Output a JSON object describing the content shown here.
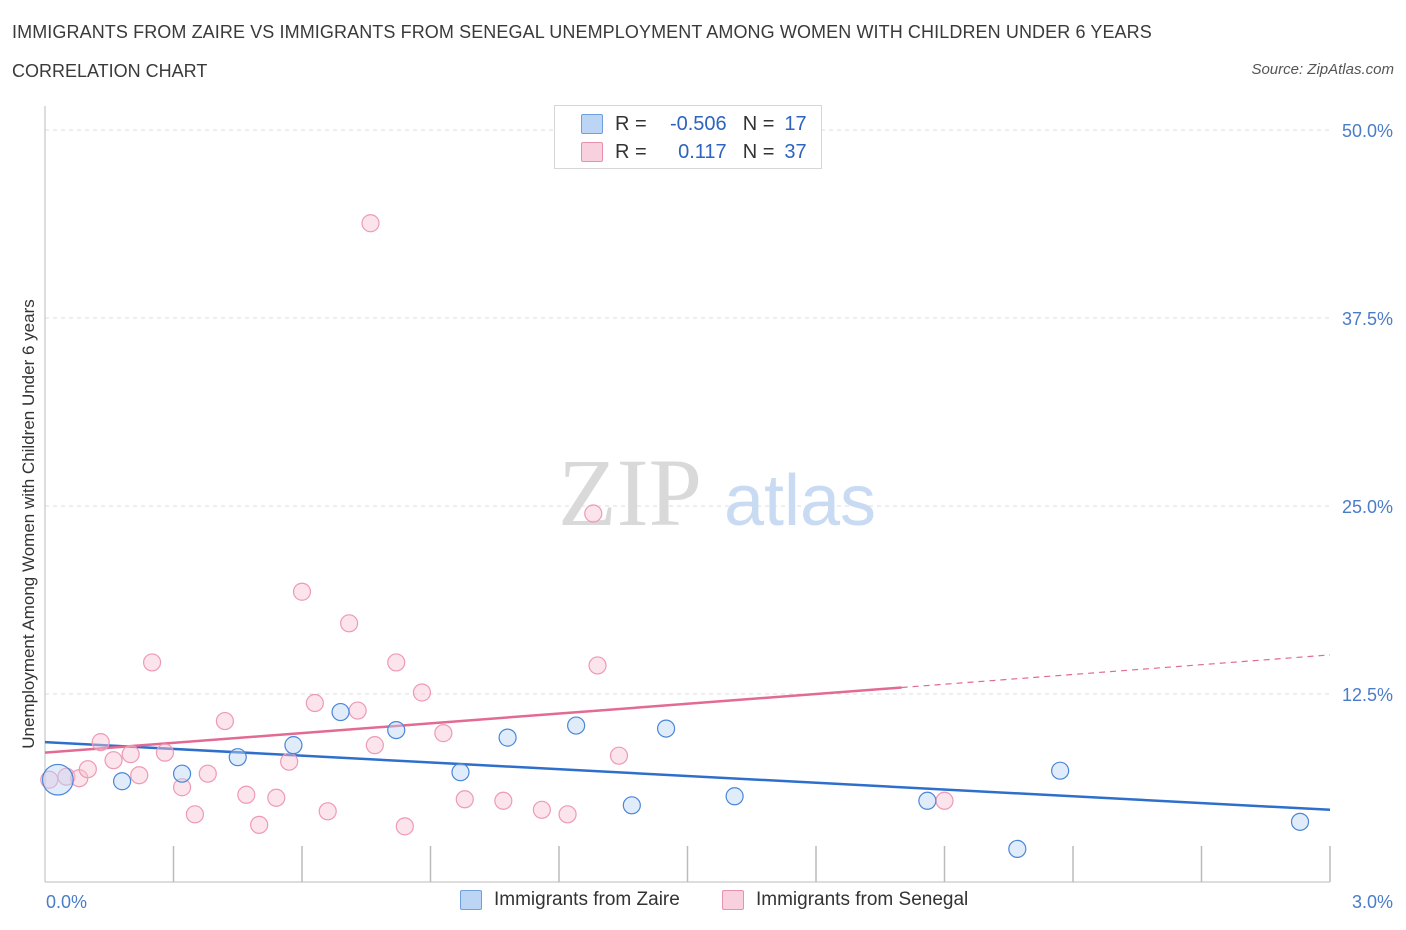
{
  "header": {
    "title": "IMMIGRANTS FROM ZAIRE VS IMMIGRANTS FROM SENEGAL UNEMPLOYMENT AMONG WOMEN WITH CHILDREN UNDER 6 YEARS",
    "subtitle": "CORRELATION CHART",
    "source": "Source: ZipAtlas.com"
  },
  "watermark": {
    "zip": "ZIP",
    "atlas": "atlas"
  },
  "legend": {
    "rows": [
      {
        "r_label": "R =",
        "r_value": "-0.506",
        "n_label": "N =",
        "n_value": "17",
        "color": "#a9c8f0",
        "border": "#6f9fdc"
      },
      {
        "r_label": "R =",
        "r_value": "0.117",
        "n_label": "N =",
        "n_value": "37",
        "color": "#f7c4d3",
        "border": "#e891ad"
      }
    ]
  },
  "bottom_legend": {
    "zaire": "Immigrants from Zaire",
    "senegal": "Immigrants from Senegal"
  },
  "chart_data": {
    "type": "scatter",
    "title": "IMMIGRANTS FROM ZAIRE VS IMMIGRANTS FROM SENEGAL UNEMPLOYMENT AMONG WOMEN WITH CHILDREN UNDER 6 YEARS",
    "xlabel": "",
    "ylabel": "Unemployment Among Women with Children Under 6 years",
    "xlim": [
      0,
      3.0
    ],
    "ylim": [
      0,
      50
    ],
    "x_tick_labels": [
      {
        "value": 0,
        "label": "0.0%"
      },
      {
        "value": 3.0,
        "label": "3.0%"
      }
    ],
    "y_ticks": [
      {
        "value": 12.5,
        "label": "12.5%"
      },
      {
        "value": 25,
        "label": "25.0%"
      },
      {
        "value": 37.5,
        "label": "37.5%"
      },
      {
        "value": 50,
        "label": "50.0%"
      }
    ],
    "grid": true,
    "colors": {
      "zaire": "#4a86d8",
      "zaire_line": "#2e6fcc",
      "senegal": "#ee9ab5",
      "senegal_line": "#e26a93",
      "tick": "#4a7cc7"
    },
    "series": [
      {
        "name": "Immigrants from Zaire",
        "points": [
          [
            0.03,
            6.8,
            1.8
          ],
          [
            0.18,
            6.7,
            1
          ],
          [
            0.32,
            7.2,
            1
          ],
          [
            0.45,
            8.3,
            1
          ],
          [
            0.58,
            9.1,
            1
          ],
          [
            0.69,
            11.3,
            1
          ],
          [
            0.82,
            10.1,
            1
          ],
          [
            0.97,
            7.3,
            1
          ],
          [
            1.08,
            9.6,
            1
          ],
          [
            1.24,
            10.4,
            1
          ],
          [
            1.37,
            5.1,
            1
          ],
          [
            1.45,
            10.2,
            1
          ],
          [
            1.61,
            5.7,
            1
          ],
          [
            2.06,
            5.4,
            1
          ],
          [
            2.27,
            2.2,
            1
          ],
          [
            2.37,
            7.4,
            1
          ],
          [
            2.93,
            4.0,
            1
          ]
        ],
        "trend": {
          "x": [
            0,
            3.0
          ],
          "y": [
            9.3,
            4.8
          ],
          "dashed_from": null
        }
      },
      {
        "name": "Immigrants from Senegal",
        "points": [
          [
            0.01,
            6.8,
            1
          ],
          [
            0.05,
            7.0,
            1
          ],
          [
            0.08,
            6.9,
            1
          ],
          [
            0.1,
            7.5,
            1
          ],
          [
            0.13,
            9.3,
            1
          ],
          [
            0.16,
            8.1,
            1
          ],
          [
            0.2,
            8.5,
            1
          ],
          [
            0.22,
            7.1,
            1
          ],
          [
            0.25,
            14.6,
            1
          ],
          [
            0.28,
            8.6,
            1
          ],
          [
            0.32,
            6.3,
            1
          ],
          [
            0.35,
            4.5,
            1
          ],
          [
            0.38,
            7.2,
            1
          ],
          [
            0.42,
            10.7,
            1
          ],
          [
            0.47,
            5.8,
            1
          ],
          [
            0.5,
            3.8,
            1
          ],
          [
            0.54,
            5.6,
            1
          ],
          [
            0.57,
            8.0,
            1
          ],
          [
            0.6,
            19.3,
            1
          ],
          [
            0.63,
            11.9,
            1
          ],
          [
            0.66,
            4.7,
            1
          ],
          [
            0.71,
            17.2,
            1
          ],
          [
            0.73,
            11.4,
            1
          ],
          [
            0.77,
            9.1,
            1
          ],
          [
            0.76,
            43.8,
            1
          ],
          [
            0.82,
            14.6,
            1
          ],
          [
            0.84,
            3.7,
            1
          ],
          [
            0.88,
            12.6,
            1
          ],
          [
            0.93,
            9.9,
            1
          ],
          [
            0.98,
            5.5,
            1
          ],
          [
            1.07,
            5.4,
            1
          ],
          [
            1.16,
            4.8,
            1
          ],
          [
            1.22,
            4.5,
            1
          ],
          [
            1.28,
            24.5,
            1
          ],
          [
            1.29,
            14.4,
            1
          ],
          [
            1.34,
            8.4,
            1
          ],
          [
            2.1,
            5.4,
            1
          ]
        ],
        "trend": {
          "x": [
            0,
            3.0
          ],
          "y": [
            8.6,
            15.1
          ],
          "dashed_from": 2.0
        }
      }
    ]
  }
}
